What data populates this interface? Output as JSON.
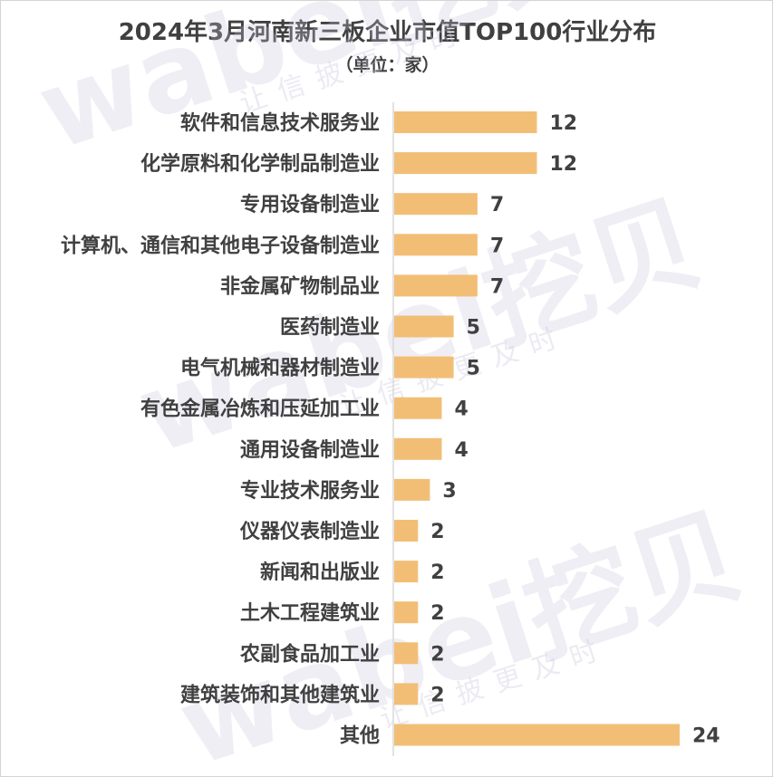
{
  "title": "2024年3月河南新三板企业市值TOP100行业分布",
  "subtitle": "（单位：家）",
  "watermark": {
    "brand": "wabei挖贝",
    "tagline": "让信披更及时"
  },
  "colors": {
    "bar": "#f2be76",
    "axis": "#d9d9d9",
    "text": "#404040",
    "watermark": "#c9c6dc"
  },
  "chart_data": {
    "type": "bar",
    "orientation": "horizontal",
    "categories": [
      "软件和信息技术服务业",
      "化学原料和化学制品制造业",
      "专用设备制造业",
      "计算机、通信和其他电子设备制造业",
      "非金属矿物制品业",
      "医药制造业",
      "电气机械和器材制造业",
      "有色金属冶炼和压延加工业",
      "通用设备制造业",
      "专业技术服务业",
      "仪器仪表制造业",
      "新闻和出版业",
      "土木工程建筑业",
      "农副食品加工业",
      "建筑装饰和其他建筑业",
      "其他"
    ],
    "values": [
      12,
      12,
      7,
      7,
      7,
      5,
      5,
      4,
      4,
      3,
      2,
      2,
      2,
      2,
      2,
      24
    ],
    "xlim": [
      0,
      24
    ],
    "grid": false,
    "legend": "none",
    "data_labels": true
  }
}
